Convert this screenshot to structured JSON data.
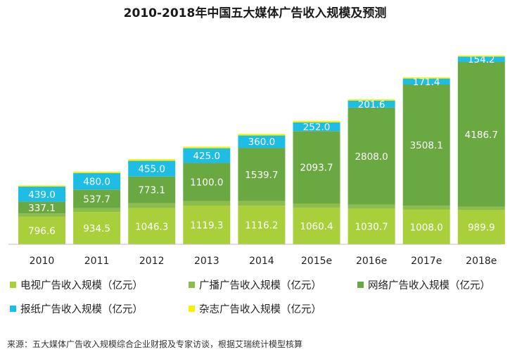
{
  "chart_data": {
    "type": "bar",
    "stacked": true,
    "title": "2010-2018年中国五大媒体广告收入规模及预测",
    "categories": [
      "2010",
      "2011",
      "2012",
      "2013",
      "2014",
      "2015e",
      "2016e",
      "2017e",
      "2018e"
    ],
    "series": [
      {
        "name": "电视广告收入规模（亿元）",
        "color": "#a9cf3b",
        "values": [
          796.6,
          934.5,
          1046.3,
          1119.3,
          1116.2,
          1060.4,
          1030.7,
          1008.0,
          989.9
        ],
        "labels": [
          "796.6",
          "934.5",
          "1046.3",
          "1119.3",
          "1116.2",
          "1060.4",
          "1030.7",
          "1008.0",
          "989.9"
        ]
      },
      {
        "name": "广播广告收入规模（亿元）",
        "color": "#8bbd4b",
        "values": [
          96.5,
          110.6,
          141.1,
          134.1,
          132.8,
          120.9,
          114.1,
          106.3,
          97.3
        ],
        "labels": [
          "",
          "",
          "",
          "",
          "",
          "",
          "",
          "",
          ""
        ]
      },
      {
        "name": "网络广告收入规模（亿元）",
        "color": "#6aa842",
        "values": [
          337.1,
          537.7,
          773.1,
          1100.0,
          1539.7,
          2093.7,
          2808.0,
          3508.1,
          4186.7
        ],
        "labels": [
          "337.1",
          "537.7",
          "773.1",
          "1100.0",
          "1539.7",
          "2093.7",
          "2808.0",
          "3508.1",
          "4186.7"
        ]
      },
      {
        "name": "报纸广告收入规模（亿元）",
        "color": "#1ebde6",
        "values": [
          439.0,
          480.0,
          455.0,
          425.0,
          360.0,
          252.0,
          201.6,
          171.4,
          154.2
        ],
        "labels": [
          "439.0",
          "480.0",
          "455.0",
          "425.0",
          "360.0",
          "252.0",
          "201.6",
          "171.4",
          "154.2"
        ]
      },
      {
        "name": "杂志广告收入规模（亿元）",
        "color": "#f7f200",
        "values": [
          35,
          40,
          45,
          45,
          45,
          45,
          38,
          36,
          34
        ],
        "labels": [
          "",
          "",
          "",
          "",
          "",
          "",
          "",
          "",
          ""
        ]
      }
    ],
    "ylim": [
      0,
      5600
    ],
    "grid": false,
    "legend_position": "bottom"
  },
  "source_note": "来源：五大媒体广告收入规模综合企业财报及专家访谈，根据艾瑞统计模型核算"
}
